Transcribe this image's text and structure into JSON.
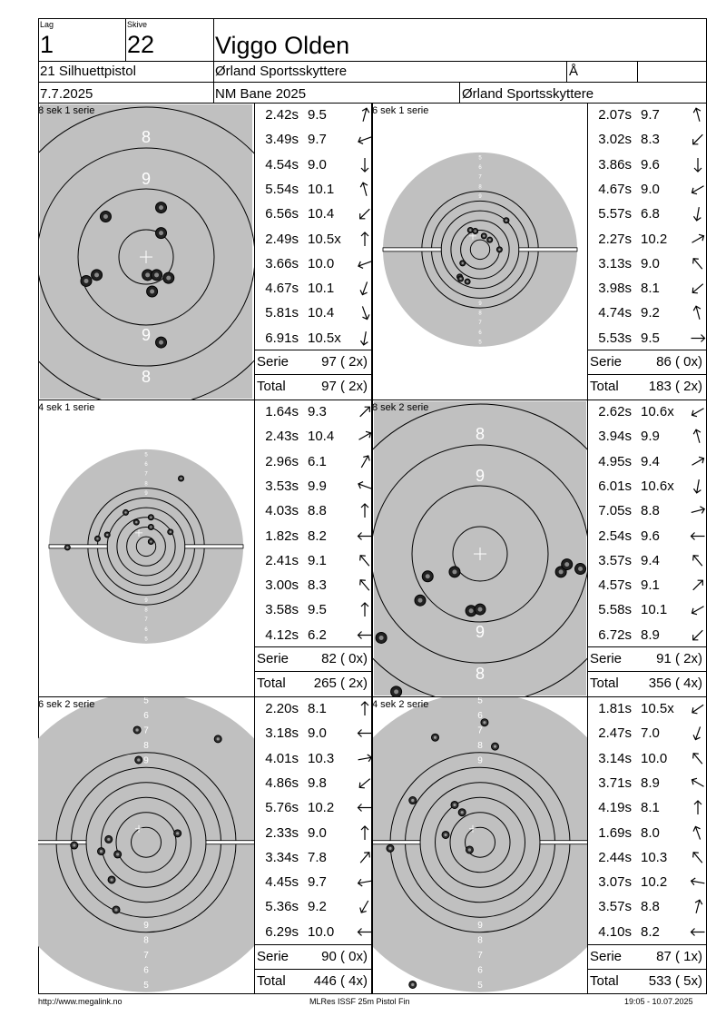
{
  "header": {
    "lag_label": "Lag",
    "lag_value": "1",
    "skive_label": "Skive",
    "skive_value": "22",
    "shooter_name": "Viggo Olden",
    "class_name": "21 Silhuettpistol",
    "club": "Ørland Sportsskyttere",
    "aa_label": "Å",
    "date": "7.7.2025",
    "event": "NM Bane 2025",
    "organizer": "Ørland Sportsskyttere"
  },
  "panels": [
    {
      "label": "8 sek 1 serie",
      "target_type": "zoomed",
      "ring_labels": [
        "8",
        "9",
        "9",
        "8"
      ],
      "shots": [
        {
          "time": "2.42s",
          "value": "9.5",
          "dir": 15
        },
        {
          "time": "3.49s",
          "value": "9.7",
          "dir": 250
        },
        {
          "time": "4.54s",
          "value": "9.0",
          "dir": 180
        },
        {
          "time": "5.54s",
          "value": "10.1",
          "dir": 345
        },
        {
          "time": "6.56s",
          "value": "10.4",
          "dir": 225
        },
        {
          "time": "2.49s",
          "value": "10.5x",
          "dir": 0
        },
        {
          "time": "3.66s",
          "value": "10.0",
          "dir": 250
        },
        {
          "time": "4.67s",
          "value": "10.1",
          "dir": 200
        },
        {
          "time": "5.81s",
          "value": "10.4",
          "dir": 160
        },
        {
          "time": "6.91s",
          "value": "10.5x",
          "dir": 190
        }
      ],
      "serie_label": "Serie",
      "serie_value": "97 ( 2x)",
      "total_label": "Total",
      "total_value": "97 ( 2x)"
    },
    {
      "label": "6 sek 1 serie",
      "target_type": "full",
      "ring_labels": [
        "5",
        "6",
        "7",
        "8",
        "9",
        "9",
        "8",
        "7",
        "6",
        "5"
      ],
      "shots": [
        {
          "time": "2.07s",
          "value": "9.7",
          "dir": 345
        },
        {
          "time": "3.02s",
          "value": "8.3",
          "dir": 225
        },
        {
          "time": "3.86s",
          "value": "9.6",
          "dir": 180
        },
        {
          "time": "4.67s",
          "value": "9.0",
          "dir": 240
        },
        {
          "time": "5.57s",
          "value": "6.8",
          "dir": 190
        },
        {
          "time": "2.27s",
          "value": "10.2",
          "dir": 60
        },
        {
          "time": "3.13s",
          "value": "9.0",
          "dir": 320
        },
        {
          "time": "3.98s",
          "value": "8.1",
          "dir": 230
        },
        {
          "time": "4.74s",
          "value": "9.2",
          "dir": 345
        },
        {
          "time": "5.53s",
          "value": "9.5",
          "dir": 90
        }
      ],
      "serie_label": "Serie",
      "serie_value": "86 ( 0x)",
      "total_label": "Total",
      "total_value": "183 ( 2x)"
    },
    {
      "label": "4 sek 1 serie",
      "target_type": "full",
      "ring_labels": [
        "5",
        "6",
        "7",
        "8",
        "9",
        "9",
        "8",
        "7",
        "6",
        "5"
      ],
      "shots": [
        {
          "time": "1.64s",
          "value": "9.3",
          "dir": 45
        },
        {
          "time": "2.43s",
          "value": "10.4",
          "dir": 60
        },
        {
          "time": "2.96s",
          "value": "6.1",
          "dir": 30
        },
        {
          "time": "3.53s",
          "value": "9.9",
          "dir": 290
        },
        {
          "time": "4.03s",
          "value": "8.8",
          "dir": 0
        },
        {
          "time": "1.82s",
          "value": "8.2",
          "dir": 270
        },
        {
          "time": "2.41s",
          "value": "9.1",
          "dir": 320
        },
        {
          "time": "3.00s",
          "value": "8.3",
          "dir": 320
        },
        {
          "time": "3.58s",
          "value": "9.5",
          "dir": 0
        },
        {
          "time": "4.12s",
          "value": "6.2",
          "dir": 270
        }
      ],
      "serie_label": "Serie",
      "serie_value": "82 ( 0x)",
      "total_label": "Total",
      "total_value": "265 ( 2x)"
    },
    {
      "label": "8 sek 2 serie",
      "target_type": "zoomed",
      "ring_labels": [
        "8",
        "9",
        "9",
        "8"
      ],
      "shots": [
        {
          "time": "2.62s",
          "value": "10.6x",
          "dir": 240
        },
        {
          "time": "3.94s",
          "value": "9.9",
          "dir": 345
        },
        {
          "time": "4.95s",
          "value": "9.4",
          "dir": 60
        },
        {
          "time": "6.01s",
          "value": "10.6x",
          "dir": 190
        },
        {
          "time": "7.05s",
          "value": "8.8",
          "dir": 75
        },
        {
          "time": "2.54s",
          "value": "9.6",
          "dir": 270
        },
        {
          "time": "3.57s",
          "value": "9.4",
          "dir": 320
        },
        {
          "time": "4.57s",
          "value": "9.1",
          "dir": 45
        },
        {
          "time": "5.58s",
          "value": "10.1",
          "dir": 240
        },
        {
          "time": "6.72s",
          "value": "8.9",
          "dir": 225
        }
      ],
      "serie_label": "Serie",
      "serie_value": "91 ( 2x)",
      "total_label": "Total",
      "total_value": "356 ( 4x)"
    },
    {
      "label": "6 sek 2 serie",
      "target_type": "full-large",
      "ring_labels": [
        "5",
        "6",
        "7",
        "8",
        "9",
        "9",
        "8",
        "7",
        "6",
        "5"
      ],
      "shots": [
        {
          "time": "2.20s",
          "value": "8.1",
          "dir": 0
        },
        {
          "time": "3.18s",
          "value": "9.0",
          "dir": 270
        },
        {
          "time": "4.01s",
          "value": "10.3",
          "dir": 80
        },
        {
          "time": "4.86s",
          "value": "9.8",
          "dir": 230
        },
        {
          "time": "5.76s",
          "value": "10.2",
          "dir": 270
        },
        {
          "time": "2.33s",
          "value": "9.0",
          "dir": 0
        },
        {
          "time": "3.34s",
          "value": "7.8",
          "dir": 40
        },
        {
          "time": "4.45s",
          "value": "9.7",
          "dir": 260
        },
        {
          "time": "5.36s",
          "value": "9.2",
          "dir": 210
        },
        {
          "time": "6.29s",
          "value": "10.0",
          "dir": 270
        }
      ],
      "serie_label": "Serie",
      "serie_value": "90 ( 0x)",
      "total_label": "Total",
      "total_value": "446 ( 4x)"
    },
    {
      "label": "4 sek 2 serie",
      "target_type": "full-large",
      "ring_labels": [
        "5",
        "6",
        "7",
        "8",
        "9",
        "9",
        "8",
        "7",
        "6",
        "5"
      ],
      "shots": [
        {
          "time": "1.81s",
          "value": "10.5x",
          "dir": 235
        },
        {
          "time": "2.47s",
          "value": "7.0",
          "dir": 200
        },
        {
          "time": "3.14s",
          "value": "10.0",
          "dir": 320
        },
        {
          "time": "3.71s",
          "value": "8.9",
          "dir": 300
        },
        {
          "time": "4.19s",
          "value": "8.1",
          "dir": 0
        },
        {
          "time": "1.69s",
          "value": "8.0",
          "dir": 340
        },
        {
          "time": "2.44s",
          "value": "10.3",
          "dir": 320
        },
        {
          "time": "3.07s",
          "value": "10.2",
          "dir": 280
        },
        {
          "time": "3.57s",
          "value": "8.8",
          "dir": 15
        },
        {
          "time": "4.10s",
          "value": "8.2",
          "dir": 270
        }
      ],
      "serie_label": "Serie",
      "serie_value": "87 ( 1x)",
      "total_label": "Total",
      "total_value": "533 ( 5x)"
    }
  ],
  "footer": {
    "left": "http://www.megalink.no",
    "center": "MLRes ISSF 25m Pistol Fin",
    "right": "19:05 - 10.07.2025"
  }
}
